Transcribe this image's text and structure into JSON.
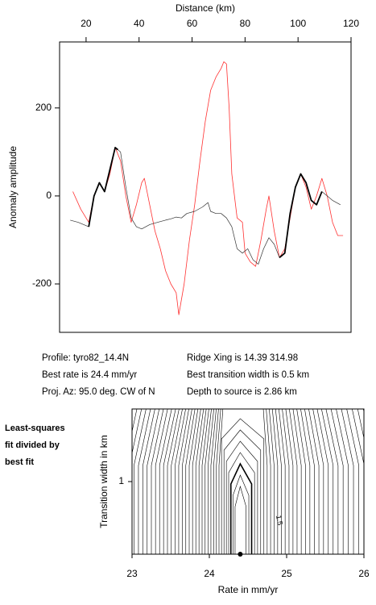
{
  "chart_data": [
    {
      "type": "line",
      "xlabel": "Distance (km)",
      "ylabel": "Anomaly amplitude",
      "xlim": [
        10,
        120
      ],
      "xticks": [
        20,
        40,
        60,
        80,
        100,
        120
      ],
      "ylim": [
        -310,
        350
      ],
      "yticks": [
        -200,
        0,
        200
      ],
      "series": [
        {
          "color": "#ff3030",
          "width": 0.8,
          "x": [
            15,
            18,
            21,
            23,
            25,
            27,
            29,
            31,
            33,
            35,
            37,
            39,
            41,
            42,
            44,
            46,
            48,
            50,
            52,
            54,
            55,
            57,
            59,
            61,
            63,
            65,
            67,
            69,
            71,
            72,
            73,
            74,
            75,
            77,
            79,
            80,
            82,
            84,
            86,
            88,
            89,
            91,
            93,
            95,
            97,
            99,
            101,
            103,
            105,
            107,
            109,
            111,
            113,
            115,
            117
          ],
          "values": [
            10,
            -30,
            -60,
            0,
            30,
            10,
            50,
            110,
            80,
            0,
            -60,
            -20,
            30,
            40,
            -20,
            -80,
            -120,
            -170,
            -200,
            -220,
            -270,
            -200,
            -100,
            -20,
            80,
            170,
            240,
            270,
            290,
            305,
            300,
            200,
            50,
            -50,
            -60,
            -130,
            -150,
            -160,
            -100,
            -30,
            0,
            -80,
            -140,
            -120,
            -50,
            20,
            50,
            20,
            -30,
            0,
            40,
            0,
            -60,
            -90,
            -90
          ]
        },
        {
          "color": "#333333",
          "width": 0.7,
          "x": [
            14,
            17,
            21,
            23,
            25,
            27,
            29,
            31,
            33,
            35,
            37,
            39,
            41,
            44,
            47,
            50,
            52,
            54,
            56,
            58,
            61,
            64,
            66,
            67,
            69,
            71,
            73,
            75,
            77,
            79,
            81,
            83,
            85,
            87,
            89,
            91,
            93,
            95,
            97,
            99,
            101,
            103,
            105,
            107,
            109,
            111,
            113,
            116
          ],
          "values": [
            -55,
            -60,
            -70,
            0,
            30,
            10,
            60,
            110,
            100,
            20,
            -50,
            -70,
            -75,
            -65,
            -60,
            -55,
            -52,
            -48,
            -50,
            -40,
            -35,
            -25,
            -15,
            -35,
            -40,
            -40,
            -50,
            -70,
            -120,
            -130,
            -120,
            -145,
            -155,
            -120,
            -95,
            -110,
            -140,
            -130,
            -40,
            20,
            50,
            30,
            -10,
            -20,
            10,
            0,
            -10,
            -20
          ]
        },
        {
          "color": "#000000",
          "width": 1.8,
          "x": [
            21,
            23,
            25,
            27,
            29,
            31,
            32,
            62,
            93,
            95,
            97,
            99,
            101,
            103,
            105,
            107,
            109
          ],
          "values": [
            -70,
            0,
            30,
            10,
            60,
            110,
            105,
            null,
            -140,
            -130,
            -40,
            20,
            50,
            30,
            -10,
            -20,
            10
          ]
        }
      ],
      "annotations": [
        [
          "Profile: tyro82_14.4N",
          "Best rate is 24.4 mm/yr",
          "Proj. Az: 95.0 deg. CW of N"
        ],
        [
          "Ridge Xing is 14.39 314.98",
          "Best transition width is 0.5 km",
          "Depth to source is   2.86 km"
        ]
      ]
    },
    {
      "type": "contour",
      "xlabel": "Rate in mm/yr",
      "ylabel": "Transition width in km",
      "xlim": [
        23,
        26
      ],
      "xticks": [
        23,
        24,
        25,
        26
      ],
      "ylim": [
        0.5,
        1.5
      ],
      "yticks": [
        1
      ],
      "best_point": {
        "x": 24.4,
        "y": 0.5
      },
      "contour_label": "1.5",
      "side_label": [
        "Least-squares",
        "fit divided by",
        "best fit"
      ]
    }
  ]
}
